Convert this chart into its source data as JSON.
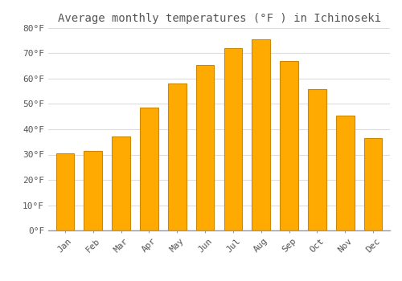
{
  "title": "Average monthly temperatures (°F ) in Ichinoseki",
  "months": [
    "Jan",
    "Feb",
    "Mar",
    "Apr",
    "May",
    "Jun",
    "Jul",
    "Aug",
    "Sep",
    "Oct",
    "Nov",
    "Dec"
  ],
  "values": [
    30.5,
    31.5,
    37.0,
    48.5,
    58.0,
    65.5,
    72.0,
    75.5,
    67.0,
    56.0,
    45.5,
    36.5
  ],
  "bar_color": "#FFAA00",
  "bar_edge_color": "#CC8800",
  "background_color": "#FFFFFF",
  "grid_color": "#DDDDDD",
  "ylim": [
    0,
    80
  ],
  "yticks": [
    0,
    10,
    20,
    30,
    40,
    50,
    60,
    70,
    80
  ],
  "ytick_labels": [
    "0°F",
    "10°F",
    "20°F",
    "30°F",
    "40°F",
    "50°F",
    "60°F",
    "70°F",
    "80°F"
  ],
  "title_fontsize": 10,
  "tick_fontsize": 8,
  "font_color": "#555555"
}
